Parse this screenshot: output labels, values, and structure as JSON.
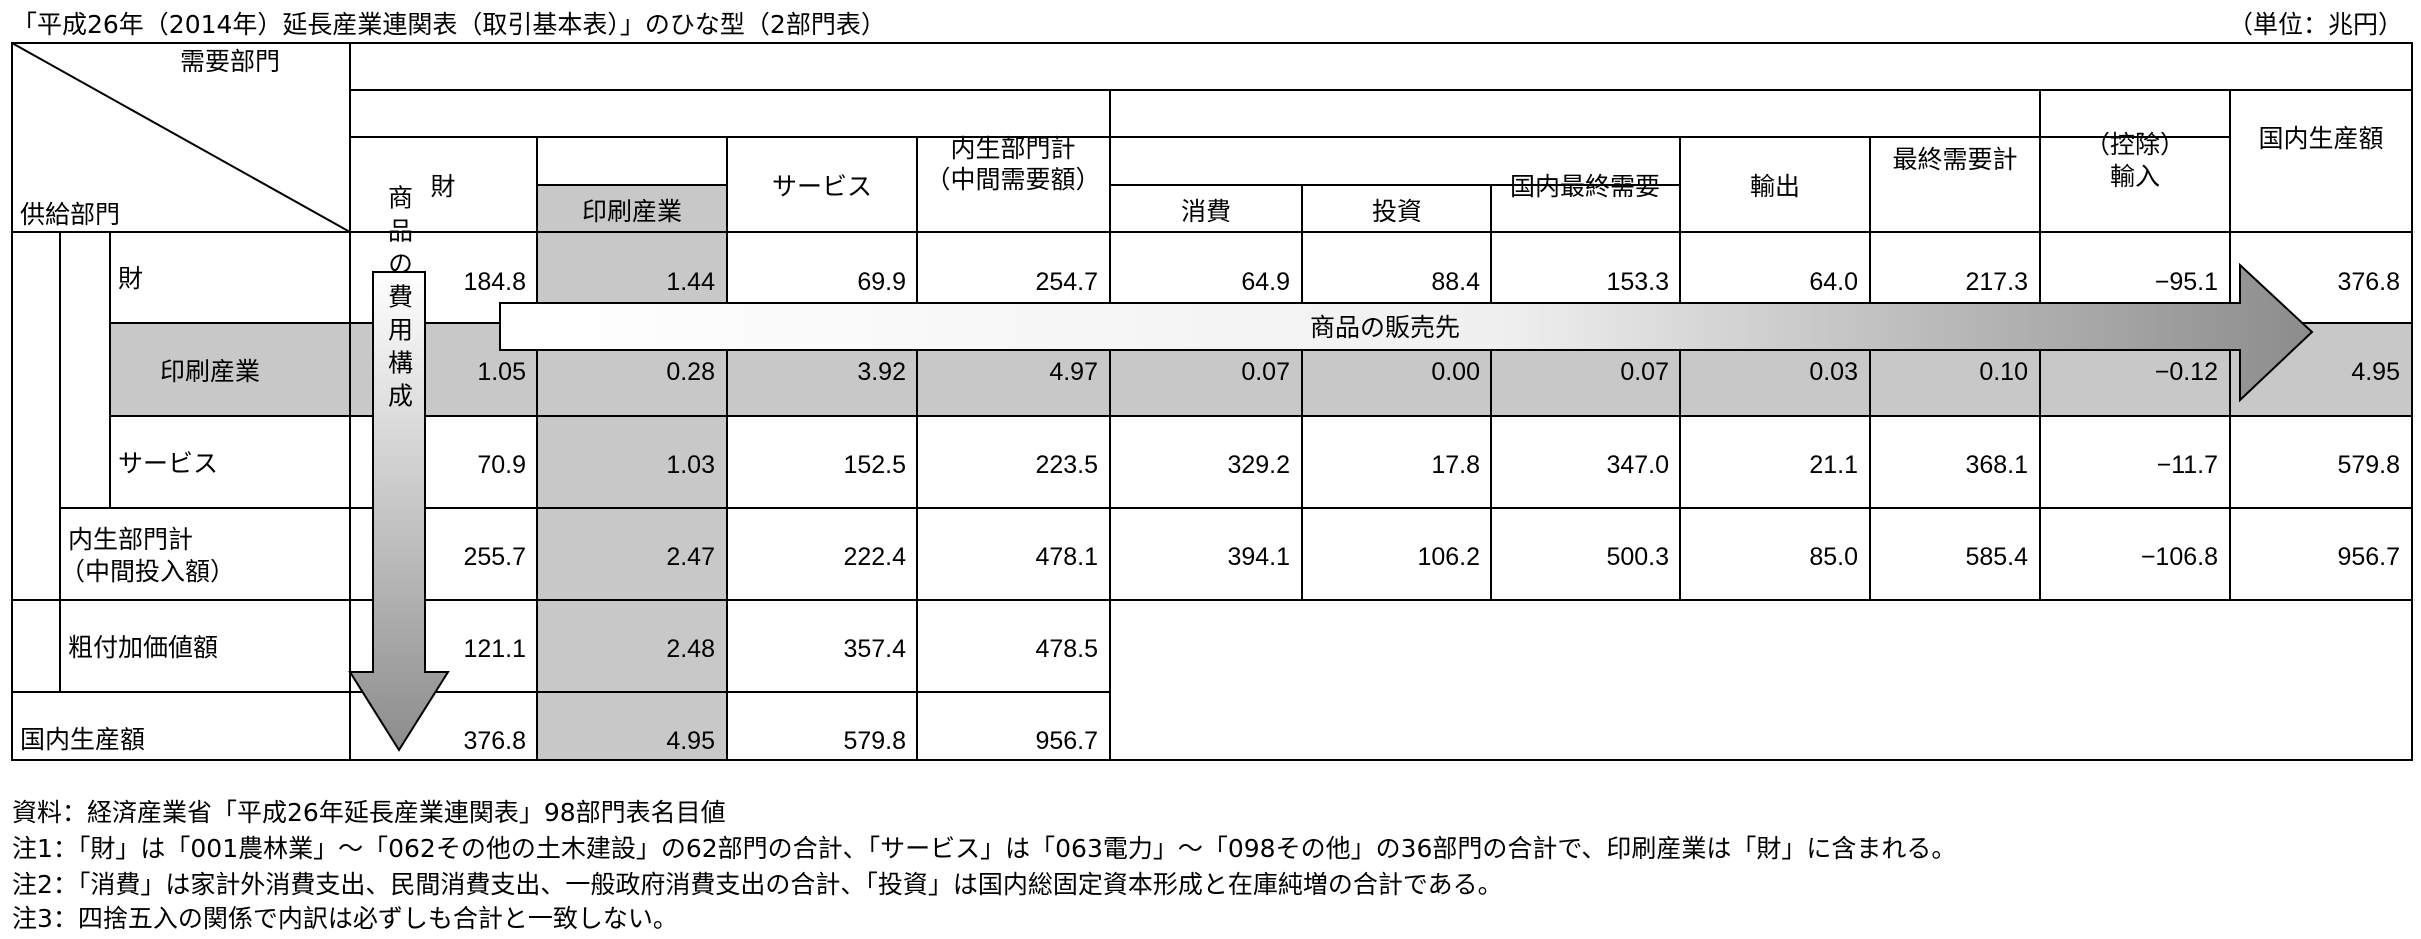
{
  "title": "「平成26年（2014年）延長産業連関表（取引基本表）」のひな型（2部門表）",
  "unit": "（単位：兆円）",
  "corner": {
    "demand": "需要部門",
    "supply": "供給部門"
  },
  "headers": {
    "zai": "財",
    "insatsu": "印刷産業",
    "service": "サービス",
    "naisei_1": "内生部門計",
    "naisei_2": "（中間需要額）",
    "shouhi": "消費",
    "toushi": "投資",
    "kokunai_saishu": "国内最終需要",
    "yushutsu": "輸出",
    "saishu_kei": "最終需要計",
    "yunyu_1": "（控除）",
    "yunyu_2": "輸入",
    "seisan": "国内生産額"
  },
  "rows": [
    {
      "label": "財",
      "values": [
        "184.8",
        "1.44",
        "69.9",
        "254.7",
        "64.9",
        "88.4",
        "153.3",
        "64.0",
        "217.3",
        "−95.1",
        "376.8"
      ]
    },
    {
      "label": "印刷産業",
      "values": [
        "1.05",
        "0.28",
        "3.92",
        "4.97",
        "0.07",
        "0.00",
        "0.07",
        "0.03",
        "0.10",
        "−0.12",
        "4.95"
      ]
    },
    {
      "label": "サービス",
      "values": [
        "70.9",
        "1.03",
        "152.5",
        "223.5",
        "329.2",
        "17.8",
        "347.0",
        "21.1",
        "368.1",
        "−11.7",
        "579.8"
      ]
    },
    {
      "label_1": "内生部門計",
      "label_2": "（中間投入額）",
      "values": [
        "255.7",
        "2.47",
        "222.4",
        "478.1",
        "394.1",
        "106.2",
        "500.3",
        "85.0",
        "585.4",
        "−106.8",
        "956.7"
      ]
    },
    {
      "label": "粗付加価値額",
      "values": [
        "121.1",
        "2.48",
        "357.4",
        "478.5"
      ]
    },
    {
      "label": "国内生産額",
      "values": [
        "376.8",
        "4.95",
        "579.8",
        "956.7"
      ]
    }
  ],
  "arrows": {
    "sales": "商品の販売先",
    "cost": "商品の費用構成"
  },
  "notes": [
    "資料：経済産業省「平成26年延長産業連関表」98部門表名目値",
    "注1：「財」は「001農林業」～「062その他の土木建設」の62部門の合計、「サービス」は「063電力」～「098その他」の36部門の合計で、印刷産業は「財」に含まれる。",
    "注2：「消費」は家計外消費支出、民間消費支出、一般政府消費支出の合計、「投資」は国内総固定資本形成と在庫純増の合計である。",
    "注3：四捨五入の関係で内訳は必ずしも合計と一致しない。"
  ],
  "colors": {
    "shade": "#c8c8c8",
    "line": "#000000",
    "arrow_fill_top": "#ffffff",
    "arrow_fill_bottom": "#8c8c8c"
  }
}
